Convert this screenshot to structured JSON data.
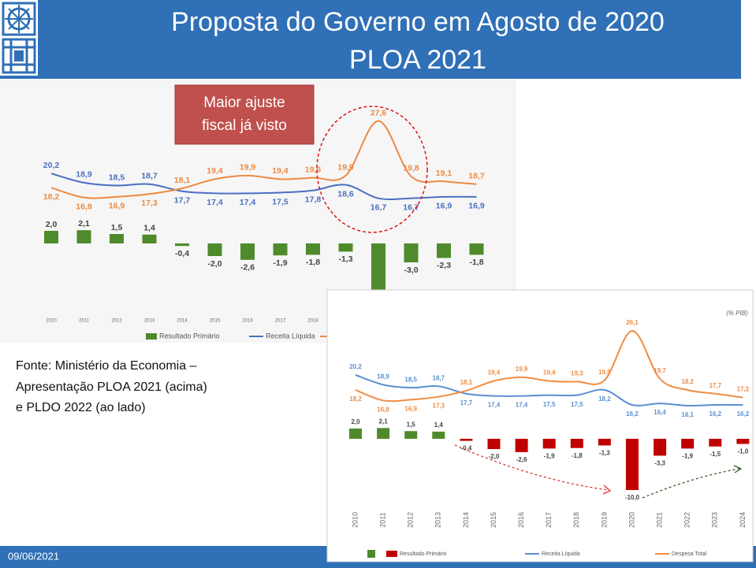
{
  "header": {
    "title_lines": [
      "Proposta do Governo em Agosto de 2020",
      "PLOA 2021"
    ]
  },
  "charts": [
    {
      "type": "line_bar",
      "categories": [
        "2010",
        "2011",
        "2012",
        "2013",
        "2014",
        "2015",
        "2016",
        "2017",
        "2018",
        "2019",
        "2020",
        "2021",
        "2022",
        "2023"
      ],
      "series": [
        {
          "name": "Resultado Primário",
          "type": "bar",
          "color": "#4f8a2c",
          "values": [
            2.0,
            2.1,
            1.5,
            1.4,
            -0.4,
            -2.0,
            -2.6,
            -1.9,
            -1.8,
            -1.3,
            -12.1,
            -3.0,
            -2.3,
            -1.8
          ],
          "value_labels": [
            "2,0",
            "2,1",
            "1,5",
            "1,4",
            "-0,4",
            "-2,0",
            "-2,6",
            "-1,9",
            "-1,8",
            "-1,3",
            null,
            "-3,0",
            "-2,3",
            "-1,8"
          ]
        },
        {
          "name": "Receita Líquida",
          "type": "line",
          "color": "#4a6fc0",
          "values": [
            20.2,
            18.9,
            18.5,
            18.7,
            17.7,
            17.4,
            17.4,
            17.5,
            17.8,
            18.6,
            16.7,
            16.7,
            16.9,
            16.9
          ],
          "value_labels": [
            "20,2",
            "18,9",
            "18,5",
            "18,7",
            "17,7",
            "17,4",
            "17,4",
            "17,5",
            "17,8",
            "18,6",
            "16,7",
            "16,7",
            "16,9",
            "16,9"
          ]
        },
        {
          "name": "Despesa Total",
          "type": "line",
          "color": "#ec8a43",
          "values": [
            18.2,
            16.8,
            16.9,
            17.3,
            18.1,
            19.4,
            19.9,
            19.4,
            19.6,
            19.9,
            27.6,
            19.8,
            19.1,
            18.7
          ],
          "value_labels": [
            "18,2",
            "16,8",
            "16,9",
            "17,3",
            "18,1",
            "19,4",
            "19,9",
            "19,4",
            "19,6",
            "19,9",
            "27,6",
            "19,8",
            "19,1",
            "18,7"
          ]
        }
      ]
    },
    {
      "type": "line_bar",
      "unit_label": "(% PIB)",
      "categories": [
        "2010",
        "2011",
        "2012",
        "2013",
        "2014",
        "2015",
        "2016",
        "2017",
        "2018",
        "2019",
        "2020",
        "2021",
        "2022",
        "2023",
        "2024"
      ],
      "series": [
        {
          "name": "Resultado Primário",
          "type": "bar",
          "color": "#c00000",
          "positive_color": "#4f8a2c",
          "values": [
            2.0,
            2.1,
            1.5,
            1.4,
            -0.4,
            -2.0,
            -2.6,
            -1.9,
            -1.8,
            -1.3,
            -10.0,
            -3.3,
            -1.9,
            -1.5,
            -1.0
          ],
          "value_labels": [
            "2,0",
            "2,1",
            "1,5",
            "1,4",
            "-0,4",
            "-2,0",
            "-2,6",
            "-1,9",
            "-1,8",
            "-1,3",
            "-10,0",
            "-3,3",
            "-1,9",
            "-1,5",
            "-1,0"
          ]
        },
        {
          "name": "Receita Líquida",
          "type": "line",
          "color": "#5b8fd0",
          "values": [
            20.2,
            18.9,
            18.5,
            18.7,
            17.7,
            17.4,
            17.4,
            17.5,
            17.5,
            18.2,
            16.2,
            16.4,
            16.1,
            16.2,
            16.2
          ],
          "value_labels": [
            "20,2",
            "18,9",
            "18,5",
            "18,7",
            "17,7",
            "17,4",
            "17,4",
            "17,5",
            "17,5",
            "18,2",
            "16,2",
            "16,4",
            "16,1",
            "16,2",
            "16,2"
          ]
        },
        {
          "name": "Despesa Total",
          "type": "line",
          "color": "#ef8c42",
          "values": [
            18.2,
            16.8,
            16.9,
            17.3,
            18.1,
            19.4,
            19.9,
            19.4,
            19.3,
            19.5,
            26.1,
            19.7,
            18.2,
            17.7,
            17.2
          ],
          "value_labels": [
            "18,2",
            "16,8",
            "16,9",
            "17,3",
            "18,1",
            "19,4",
            "19,9",
            "19,4",
            "19,3",
            "19,5",
            "26,1",
            "19,7",
            "18,2",
            "17,7",
            "17,2"
          ]
        }
      ]
    }
  ],
  "callout": {
    "lines": [
      "Maior ajuste",
      "fiscal já visto"
    ]
  },
  "source": {
    "lines": [
      "Fonte: Ministério da Economia –",
      "Apresentação PLOA 2021 (acima)",
      "e PLDO 2022 (ao lado)"
    ]
  },
  "footer": {
    "date": "09/06/2021"
  }
}
